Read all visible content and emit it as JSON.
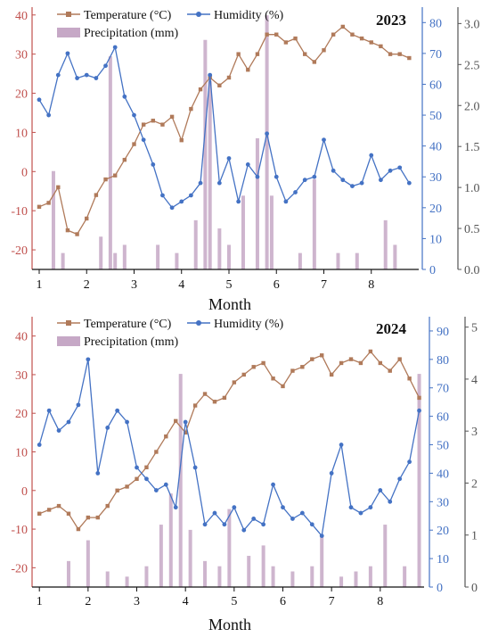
{
  "chart_data": [
    {
      "type": "line",
      "year_label": "2023",
      "xlabel": "Month",
      "x_ticks": [
        1,
        2,
        3,
        4,
        5,
        6,
        7,
        8
      ],
      "xlim": [
        0.85,
        9.0
      ],
      "legend": {
        "temperature": "Temperature (°C)",
        "humidity": "Humidity (%)",
        "precipitation": "Precipitation (mm)"
      },
      "axes": {
        "temperature": {
          "ylim": [
            -25,
            42
          ],
          "ticks": [
            -20,
            -10,
            0,
            10,
            20,
            30,
            40
          ],
          "color": "#c0504d"
        },
        "humidity": {
          "ylim": [
            0,
            85
          ],
          "ticks": [
            0,
            10,
            20,
            30,
            40,
            50,
            60,
            70,
            80
          ],
          "color": "#4472c4"
        },
        "precipitation": {
          "ylim": [
            0,
            3.2
          ],
          "ticks": [
            0.0,
            0.5,
            1.0,
            1.5,
            2.0,
            2.5,
            3.0
          ],
          "color": "#555555"
        }
      },
      "series": [
        {
          "key": "temperature",
          "color": "#b07a5a",
          "x": [
            1.0,
            1.2,
            1.4,
            1.6,
            1.8,
            2.0,
            2.2,
            2.4,
            2.6,
            2.8,
            3.0,
            3.2,
            3.4,
            3.6,
            3.8,
            4.0,
            4.2,
            4.4,
            4.6,
            4.8,
            5.0,
            5.2,
            5.4,
            5.6,
            5.8,
            6.0,
            6.2,
            6.4,
            6.6,
            6.8,
            7.0,
            7.2,
            7.4,
            7.6,
            7.8,
            8.0,
            8.2,
            8.4,
            8.6,
            8.8
          ],
          "values": [
            -9,
            -8,
            -4,
            -15,
            -16,
            -12,
            -6,
            -2,
            -1,
            3,
            7,
            12,
            13,
            12,
            14,
            8,
            16,
            21,
            24,
            22,
            24,
            30,
            26,
            30,
            35,
            35,
            33,
            34,
            30,
            28,
            31,
            35,
            37,
            35,
            34,
            33,
            32,
            30,
            30,
            29
          ]
        },
        {
          "key": "humidity",
          "color": "#4472c4",
          "x": [
            1.0,
            1.2,
            1.4,
            1.6,
            1.8,
            2.0,
            2.2,
            2.4,
            2.6,
            2.8,
            3.0,
            3.2,
            3.4,
            3.6,
            3.8,
            4.0,
            4.2,
            4.4,
            4.6,
            4.8,
            5.0,
            5.2,
            5.4,
            5.6,
            5.8,
            6.0,
            6.2,
            6.4,
            6.6,
            6.8,
            7.0,
            7.2,
            7.4,
            7.6,
            7.8,
            8.0,
            8.2,
            8.4,
            8.6,
            8.8
          ],
          "values": [
            55,
            50,
            63,
            70,
            62,
            63,
            62,
            66,
            72,
            56,
            50,
            42,
            34,
            24,
            20,
            22,
            24,
            28,
            63,
            28,
            36,
            22,
            34,
            30,
            44,
            30,
            22,
            25,
            29,
            30,
            42,
            32,
            29,
            27,
            28,
            37,
            29,
            32,
            33,
            28
          ]
        },
        {
          "key": "precipitation",
          "type": "bar",
          "color": "#c6a8c6",
          "x": [
            1.3,
            1.5,
            2.3,
            2.5,
            2.6,
            2.8,
            3.5,
            3.9,
            4.3,
            4.5,
            4.6,
            4.8,
            5.0,
            5.3,
            5.6,
            5.8,
            5.9,
            6.5,
            6.8,
            7.3,
            7.7,
            8.3,
            8.5
          ],
          "values": [
            1.2,
            0.2,
            0.4,
            2.6,
            0.2,
            0.3,
            0.3,
            0.2,
            0.6,
            2.8,
            2.3,
            0.5,
            0.3,
            0.9,
            1.6,
            3.1,
            0.9,
            0.2,
            1.1,
            0.2,
            0.2,
            0.6,
            0.3
          ]
        }
      ]
    },
    {
      "type": "line",
      "year_label": "2024",
      "xlabel": "Month",
      "x_ticks": [
        1,
        2,
        3,
        4,
        5,
        6,
        7,
        8
      ],
      "xlim": [
        0.85,
        8.9
      ],
      "legend": {
        "temperature": "Temperature (°C)",
        "humidity": "Humidity (%)",
        "precipitation": "Precipitation (mm)"
      },
      "axes": {
        "temperature": {
          "ylim": [
            -25,
            45
          ],
          "ticks": [
            -20,
            -10,
            0,
            10,
            20,
            30,
            40
          ],
          "color": "#c0504d"
        },
        "humidity": {
          "ylim": [
            0,
            95
          ],
          "ticks": [
            0,
            10,
            20,
            30,
            40,
            50,
            60,
            70,
            80,
            90
          ],
          "color": "#4472c4"
        },
        "precipitation": {
          "ylim": [
            0,
            5.2
          ],
          "ticks": [
            0,
            1,
            2,
            3,
            4,
            5
          ],
          "color": "#555555"
        }
      },
      "series": [
        {
          "key": "temperature",
          "color": "#b07a5a",
          "x": [
            1.0,
            1.2,
            1.4,
            1.6,
            1.8,
            2.0,
            2.2,
            2.4,
            2.6,
            2.8,
            3.0,
            3.2,
            3.4,
            3.6,
            3.8,
            4.0,
            4.2,
            4.4,
            4.6,
            4.8,
            5.0,
            5.2,
            5.4,
            5.6,
            5.8,
            6.0,
            6.2,
            6.4,
            6.6,
            6.8,
            7.0,
            7.2,
            7.4,
            7.6,
            7.8,
            8.0,
            8.2,
            8.4,
            8.6,
            8.8
          ],
          "values": [
            -6,
            -5,
            -4,
            -6,
            -10,
            -7,
            -7,
            -4,
            0,
            1,
            3,
            6,
            10,
            14,
            18,
            15,
            22,
            25,
            23,
            24,
            28,
            30,
            32,
            33,
            29,
            27,
            31,
            32,
            34,
            35,
            30,
            33,
            34,
            33,
            36,
            33,
            31,
            34,
            29,
            24
          ]
        },
        {
          "key": "humidity",
          "color": "#4472c4",
          "x": [
            1.0,
            1.2,
            1.4,
            1.6,
            1.8,
            2.0,
            2.2,
            2.4,
            2.6,
            2.8,
            3.0,
            3.2,
            3.4,
            3.6,
            3.8,
            4.0,
            4.2,
            4.4,
            4.6,
            4.8,
            5.0,
            5.2,
            5.4,
            5.6,
            5.8,
            6.0,
            6.2,
            6.4,
            6.6,
            6.8,
            7.0,
            7.2,
            7.4,
            7.6,
            7.8,
            8.0,
            8.2,
            8.4,
            8.6,
            8.8
          ],
          "values": [
            50,
            62,
            55,
            58,
            64,
            80,
            40,
            56,
            62,
            58,
            42,
            38,
            34,
            36,
            28,
            58,
            42,
            22,
            26,
            22,
            28,
            20,
            24,
            22,
            36,
            28,
            24,
            26,
            22,
            18,
            40,
            50,
            28,
            26,
            28,
            34,
            30,
            38,
            44,
            62
          ]
        },
        {
          "key": "precipitation",
          "type": "bar",
          "color": "#c6a8c6",
          "x": [
            1.6,
            2.0,
            2.4,
            2.8,
            3.2,
            3.5,
            3.7,
            3.9,
            4.1,
            4.4,
            4.7,
            4.9,
            5.3,
            5.6,
            5.8,
            6.2,
            6.6,
            6.8,
            7.2,
            7.5,
            7.8,
            8.1,
            8.5,
            8.8
          ],
          "values": [
            0.5,
            0.9,
            0.3,
            0.2,
            0.4,
            1.2,
            1.8,
            4.1,
            1.1,
            0.5,
            0.4,
            1.5,
            0.6,
            0.8,
            0.4,
            0.3,
            0.4,
            1.0,
            0.2,
            0.3,
            0.4,
            1.2,
            0.4,
            4.1
          ]
        }
      ]
    }
  ]
}
